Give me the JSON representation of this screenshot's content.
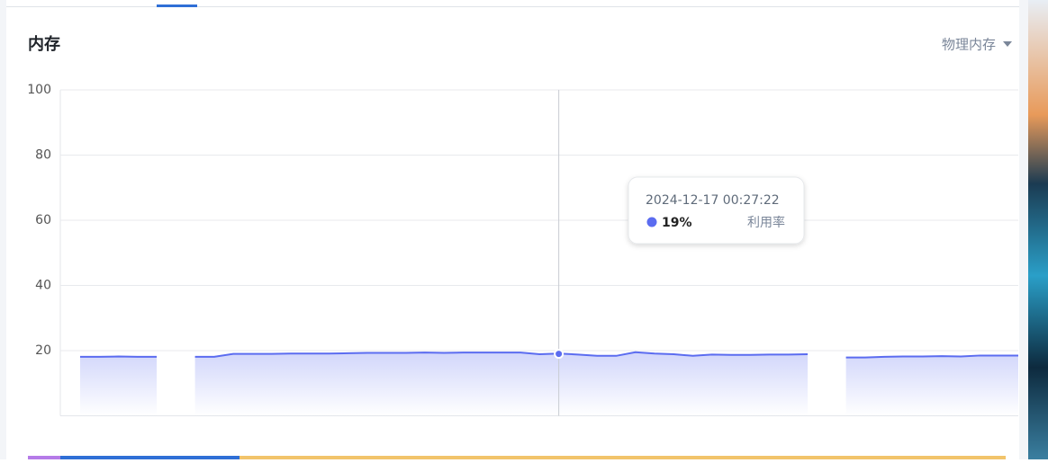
{
  "panel": {
    "title": "内存",
    "selector": "物理内存"
  },
  "chart_data": {
    "type": "area",
    "series": [
      {
        "name": "利用率",
        "color": "#5b6cf0",
        "values": [
          18.1,
          18.1,
          18.2,
          18.1,
          18.1,
          null,
          18.1,
          18.1,
          19,
          19,
          19,
          19.1,
          19.1,
          19.1,
          19.2,
          19.3,
          19.3,
          19.3,
          19.4,
          19.3,
          19.4,
          19.4,
          19.4,
          19.4,
          18.9,
          19.1,
          18.8,
          18.4,
          18.4,
          19.5,
          19.1,
          18.9,
          18.4,
          18.8,
          18.7,
          18.7,
          18.8,
          18.8,
          18.9,
          null,
          17.9,
          17.9,
          18.1,
          18.2,
          18.2,
          18.3,
          18.2,
          18.5,
          18.5,
          18.5
        ]
      }
    ],
    "ylim": [
      0,
      100
    ],
    "yticks": [
      20,
      40,
      60,
      80,
      100
    ],
    "grid": true,
    "tooltip": {
      "x": "2024-12-17 00:27:22",
      "value": {
        "value": 19,
        "label": "19%"
      }
    }
  }
}
